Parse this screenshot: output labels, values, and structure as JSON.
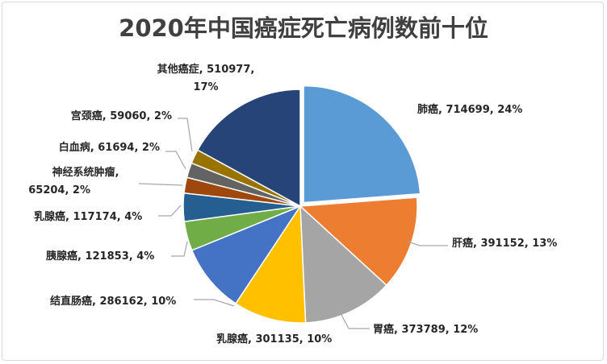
{
  "chart_data": {
    "type": "pie",
    "title": "2020年中国癌症死亡病例数前十位",
    "slices": [
      {
        "label": "肺癌",
        "value": 714699,
        "percent": "24%",
        "color": "#5B9BD5",
        "label_color": "#262626",
        "exploded": true
      },
      {
        "label": "肝癌",
        "value": 391152,
        "percent": "13%",
        "color": "#ED7D31",
        "label_color": "#262626"
      },
      {
        "label": "胃癌",
        "value": 373789,
        "percent": "12%",
        "color": "#A5A5A5",
        "label_color": "#C00000"
      },
      {
        "label": "乳腺癌",
        "value": 301135,
        "percent": "10%",
        "color": "#FFC000",
        "label_color": "#262626"
      },
      {
        "label": "结直肠癌",
        "value": 286162,
        "percent": "10%",
        "color": "#4472C4",
        "label_color": "#C00000"
      },
      {
        "label": "胰腺癌",
        "value": 121853,
        "percent": "4%",
        "color": "#70AD47",
        "label_color": "#262626"
      },
      {
        "label": "乳腺癌",
        "value": 117174,
        "percent": "4%",
        "color": "#255E91",
        "label_color": "#262626"
      },
      {
        "label": "神经系统肿瘤",
        "value": 65204,
        "percent": "2%",
        "color": "#9E480E",
        "label_color": "#262626"
      },
      {
        "label": "白血病",
        "value": 61694,
        "percent": "2%",
        "color": "#636363",
        "label_color": "#262626"
      },
      {
        "label": "宫颈癌",
        "value": 59060,
        "percent": "2%",
        "color": "#997300",
        "label_color": "#262626"
      },
      {
        "label": "其他癌症",
        "value": 510977,
        "percent": "17%",
        "color": "#264478",
        "label_color": "#262626"
      }
    ],
    "legend": "none"
  }
}
